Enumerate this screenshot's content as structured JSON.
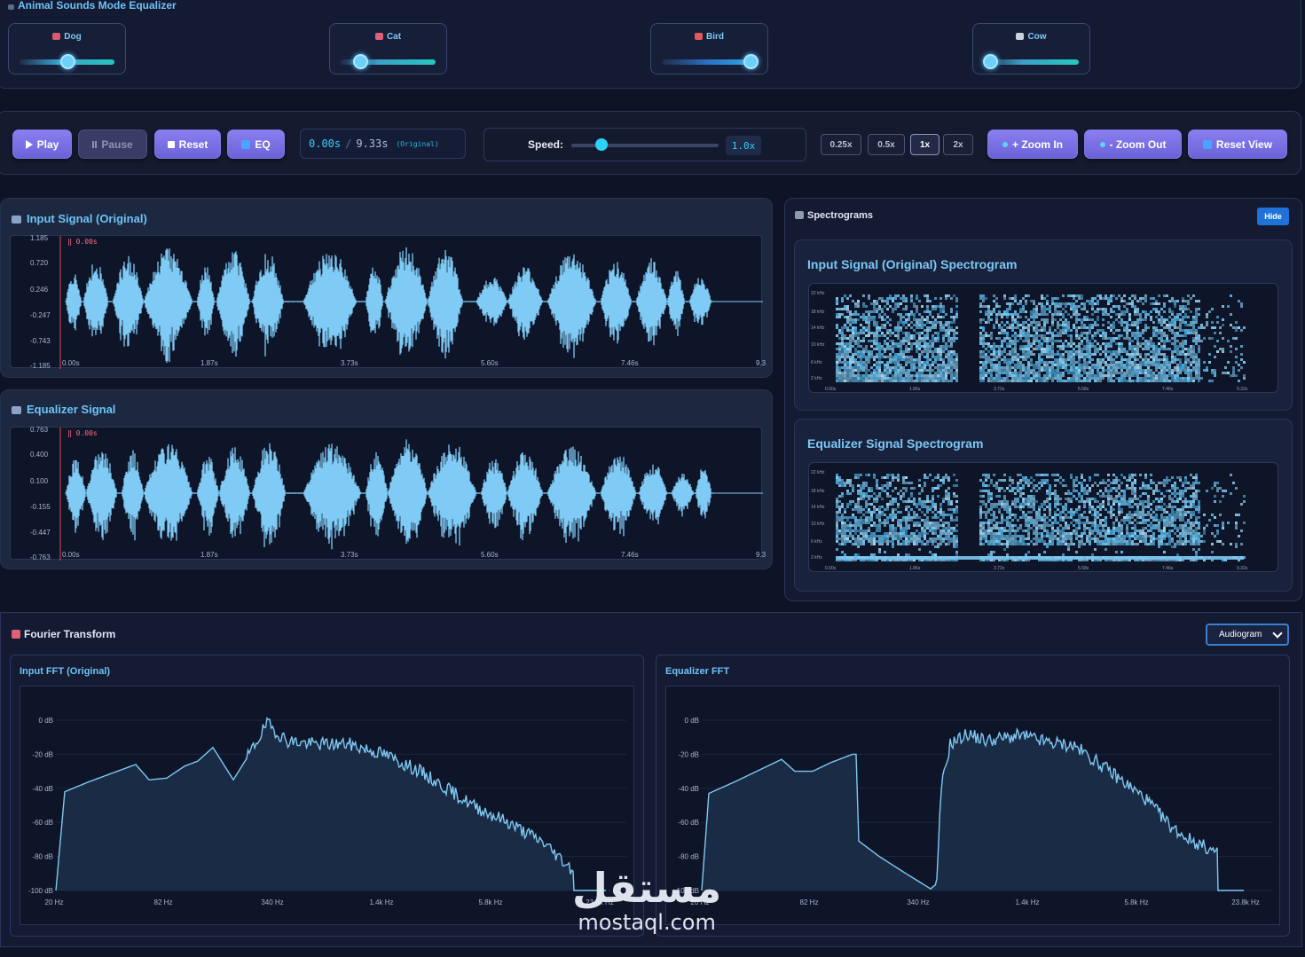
{
  "equalizer": {
    "title": "Animal Sounds Mode Equalizer",
    "sliders": [
      {
        "label": "Dog",
        "icon": "dog-icon",
        "level": 0.5
      },
      {
        "label": "Cat",
        "icon": "cat-icon",
        "level": 0.18
      },
      {
        "label": "Bird",
        "icon": "bird-icon",
        "level": 1.0
      },
      {
        "label": "Cow",
        "icon": "cow-icon",
        "level": 0.03
      }
    ]
  },
  "controls": {
    "play_label": "Play",
    "pause_label": "Pause",
    "reset_label": "Reset",
    "eq_label": "EQ",
    "time_current": "0.00s",
    "time_separator": "/",
    "time_total": "9.33s",
    "time_mode": "(Original)",
    "speed_label": "Speed:",
    "speed_value": "1.0x",
    "speed_level": 0.2,
    "rates": [
      "0.25x",
      "0.5x",
      "1x",
      "2x"
    ],
    "active_rate": "1x",
    "zoom_in_label": "+ Zoom In",
    "zoom_out_label": "- Zoom Out",
    "reset_view_label": "Reset View"
  },
  "input_signal": {
    "title": "Input Signal (Original)",
    "playhead_label": "0.00s",
    "y_ticks": [
      "1.185",
      "0.720",
      "0.246",
      "-0.247",
      "-0.743",
      "-1.185"
    ],
    "x_ticks": [
      "0.00s",
      "1.87s",
      "3.73s",
      "5.60s",
      "7.46s",
      "9.3"
    ]
  },
  "equalizer_signal": {
    "title": "Equalizer Signal",
    "playhead_label": "0.00s",
    "y_ticks": [
      "0.763",
      "0.400",
      "0.100",
      "-0.155",
      "-0.447",
      "-0.763"
    ],
    "x_ticks": [
      "0.00s",
      "1.87s",
      "3.73s",
      "5.60s",
      "7.46s",
      "9.3"
    ]
  },
  "spectrograms": {
    "title": "Spectrograms",
    "hide_label": "Hide",
    "input_title": "Input Signal (Original) Spectrogram",
    "eq_title": "Equalizer Signal Spectrogram",
    "y_ticks": [
      "22 kHz",
      "18 kHz",
      "14 kHz",
      "10 kHz",
      "6 kHz",
      "2 kHz"
    ],
    "x_ticks": [
      "0.00s",
      "1.86s",
      "3.72s",
      "5.58s",
      "7.46s",
      "9.32s"
    ]
  },
  "fourier": {
    "title": "Fourier Transform",
    "view_select": "Audiogram",
    "input_title": "Input FFT (Original)",
    "eq_title": "Equalizer FFT",
    "y_ticks": [
      "0 dB",
      "-20 dB",
      "-40 dB",
      "-60 dB",
      "-80 dB",
      "-100 dB"
    ],
    "x_ticks": [
      "20 Hz",
      "82 Hz",
      "340 Hz",
      "1.4k Hz",
      "5.8k Hz",
      "23.8k Hz"
    ]
  },
  "watermark": {
    "arabic": "مستقل",
    "latin": "mostaql.com"
  },
  "colors": {
    "background": "#0f1326",
    "accent": "#6ec3f4",
    "waveform": "#7fcbf5",
    "button": "#7b72e6",
    "playhead": "#e0475a"
  }
}
